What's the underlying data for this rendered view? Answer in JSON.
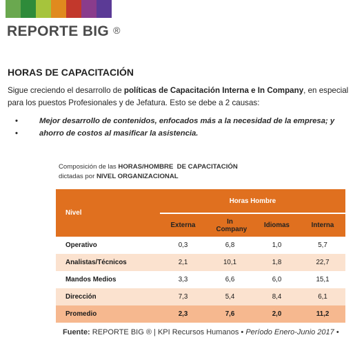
{
  "brand": {
    "colors": [
      "#6aa84f",
      "#2e8b3a",
      "#a6c43c",
      "#e08a1e",
      "#c2382c",
      "#8a3c8c",
      "#5b3a96"
    ],
    "name": "REPORTE BIG",
    "reg": "®"
  },
  "section": {
    "heading": "HORAS DE CAPACITACIÓN",
    "intro_pre": "Sigue creciendo el desarrollo de ",
    "intro_bold": "políticas de Capacitación Interna e In Company",
    "intro_post": ", en especial para los puestos Profesionales y de Jefatura. Esto se debe a 2 causas:",
    "bullet_glyph": "•",
    "bullets": [
      "Mejor desarrollo de contenidos, enfocados más a la necesidad de la empresa; y",
      "ahorro de costos al masificar la asistencia."
    ]
  },
  "caption": {
    "line1_pre": "Composición de las ",
    "line1_bold": "HORAS/HOMBRE  DE CAPACITACIÓN",
    "line2_pre": "dictadas por ",
    "line2_bold": "NIVEL ORGANIZACIONAL"
  },
  "table": {
    "header_level": "Nivel",
    "header_group": "Horas Hombre",
    "columns": [
      "Externa",
      "In Company",
      "Idiomas",
      "Interna"
    ],
    "rows": [
      {
        "label": "Operativo",
        "values": [
          "0,3",
          "6,8",
          "1,0",
          "5,7"
        ]
      },
      {
        "label": "Analistas/Técnicos",
        "values": [
          "2,1",
          "10,1",
          "1,8",
          "22,7"
        ]
      },
      {
        "label": "Mandos Medios",
        "values": [
          "3,3",
          "6,6",
          "6,0",
          "15,1"
        ]
      },
      {
        "label": "Dirección",
        "values": [
          "7,3",
          "5,4",
          "8,4",
          "6,1"
        ]
      }
    ],
    "total": {
      "label": "Promedio",
      "values": [
        "2,3",
        "7,6",
        "2,0",
        "11,2"
      ]
    }
  },
  "source": {
    "label": "Fuente:",
    "brand": "REPORTE BIG ®",
    "sep": "|",
    "org": "KPI Recursos Humanos",
    "bullet": "•",
    "period": "Período Enero-Junio 2017",
    "trail": "•"
  }
}
